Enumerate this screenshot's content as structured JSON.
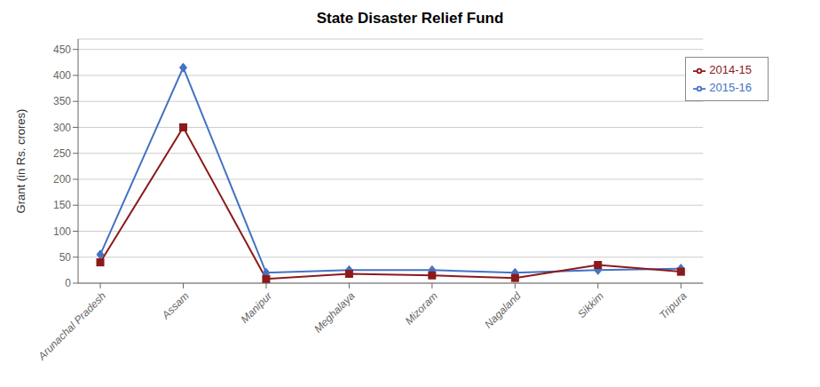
{
  "chart_data": {
    "type": "line",
    "title": "State Disaster Relief Fund",
    "ylabel": "Grant (in Rs. crores)",
    "categories": [
      "Arunachal Pradesh",
      "Assam",
      "Manipur",
      "Meghalaya",
      "Mizoram",
      "Nagaland",
      "Sikkim",
      "Tripura"
    ],
    "series": [
      {
        "name": "2015-16",
        "values": [
          55,
          415,
          20,
          25,
          25,
          20,
          25,
          28
        ],
        "color": "#4472C4",
        "marker": "diamond"
      },
      {
        "name": "2014-15",
        "values": [
          40,
          300,
          8,
          18,
          15,
          10,
          35,
          22
        ],
        "color": "#8B1A1A",
        "marker": "square"
      }
    ],
    "ylim": [
      0,
      470
    ],
    "yticks": [
      0,
      50,
      100,
      150,
      200,
      250,
      300,
      350,
      400,
      450
    ],
    "grid": true,
    "legend": "upper right"
  }
}
